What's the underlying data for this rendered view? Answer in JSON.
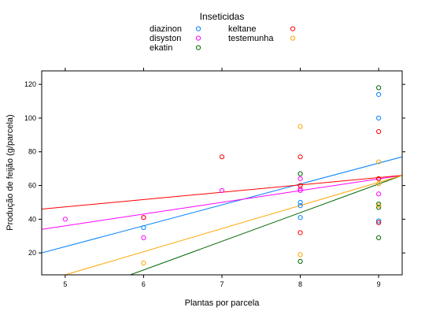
{
  "chart_data": {
    "type": "scatter",
    "title": "",
    "xlabel": "Plantas por parcela",
    "ylabel": "Produção de feijão (g/parcela)",
    "xlim": [
      4.7,
      9.3
    ],
    "ylim": [
      7,
      128
    ],
    "x_ticks": [
      5,
      6,
      7,
      8,
      9
    ],
    "y_ticks": [
      20,
      40,
      60,
      80,
      100,
      120
    ],
    "grid": false,
    "legend": {
      "title": "Inseticidas",
      "placement": "top",
      "columns": 2
    },
    "series": [
      {
        "name": "diazinon",
        "color": "#0080ff",
        "points": [
          [
            6,
            35
          ],
          [
            8,
            41
          ],
          [
            8,
            48
          ],
          [
            8,
            50
          ],
          [
            9,
            114
          ],
          [
            9,
            100
          ],
          [
            9,
            39
          ],
          [
            9,
            38
          ]
        ],
        "fit_line": [
          [
            4.7,
            20
          ],
          [
            9.3,
            77
          ]
        ]
      },
      {
        "name": "disyston",
        "color": "#ff00ff",
        "points": [
          [
            5,
            40
          ],
          [
            6,
            41
          ],
          [
            6,
            29
          ],
          [
            7,
            57
          ],
          [
            8,
            64
          ],
          [
            8,
            58
          ],
          [
            8,
            57
          ],
          [
            9,
            55
          ]
        ],
        "fit_line": [
          [
            4.7,
            34
          ],
          [
            9.3,
            66
          ]
        ]
      },
      {
        "name": "ekatin",
        "color": "#006400",
        "points": [
          [
            8,
            67
          ],
          [
            8,
            15
          ],
          [
            9,
            118
          ],
          [
            9,
            64
          ],
          [
            9,
            49
          ],
          [
            9,
            47
          ],
          [
            9,
            29
          ]
        ],
        "fit_line": [
          [
            5.83,
            7
          ],
          [
            9.3,
            66
          ]
        ]
      },
      {
        "name": "keltane",
        "color": "#ff0000",
        "points": [
          [
            6,
            41
          ],
          [
            7,
            77
          ],
          [
            8,
            77
          ],
          [
            8,
            60
          ],
          [
            8,
            32
          ],
          [
            9,
            92
          ],
          [
            9,
            64
          ],
          [
            9,
            38
          ]
        ],
        "fit_line": [
          [
            4.7,
            46
          ],
          [
            9.3,
            66
          ]
        ]
      },
      {
        "name": "testemunha",
        "color": "#ffa500",
        "points": [
          [
            6,
            14
          ],
          [
            8,
            95
          ],
          [
            8,
            19
          ],
          [
            9,
            74
          ],
          [
            9,
            61
          ],
          [
            9,
            48
          ]
        ],
        "fit_line": [
          [
            5.0,
            7
          ],
          [
            9.3,
            66
          ]
        ]
      }
    ]
  }
}
